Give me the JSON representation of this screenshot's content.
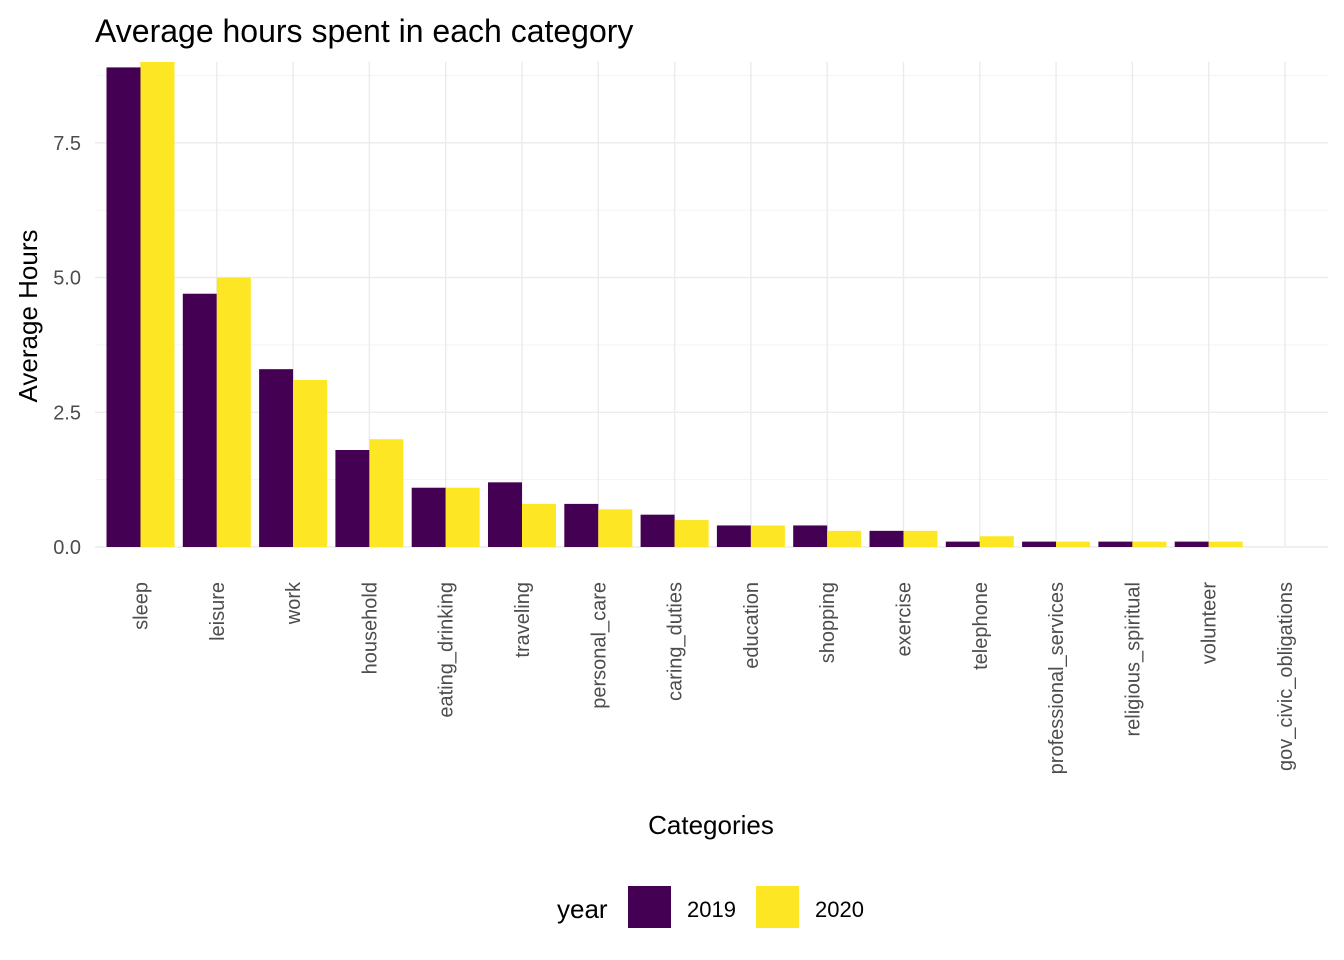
{
  "chart_data": {
    "type": "bar",
    "title": "Average hours spent in each category",
    "xlabel": "Categories",
    "ylabel": "Average Hours",
    "categories": [
      "sleep",
      "leisure",
      "work",
      "household",
      "eating_drinking",
      "traveling",
      "personal_care",
      "caring_duties",
      "education",
      "shopping",
      "exercise",
      "telephone",
      "professional_services",
      "religious_spiritual",
      "volunteer",
      "gov_civic_obligations"
    ],
    "series": [
      {
        "name": "2019",
        "color": "#440154",
        "values": [
          8.9,
          4.7,
          3.3,
          1.8,
          1.1,
          1.2,
          0.8,
          0.6,
          0.4,
          0.4,
          0.3,
          0.1,
          0.1,
          0.1,
          0.1,
          0.0
        ]
      },
      {
        "name": "2020",
        "color": "#FDE725",
        "values": [
          9.0,
          5.0,
          3.1,
          2.0,
          1.1,
          0.8,
          0.7,
          0.5,
          0.4,
          0.3,
          0.3,
          0.2,
          0.1,
          0.1,
          0.1,
          0.0
        ]
      }
    ],
    "ylim": [
      0,
      9.0
    ],
    "yticks": [
      0.0,
      2.5,
      5.0,
      7.5
    ],
    "ytick_labels": [
      "0.0",
      "2.5",
      "5.0",
      "7.5"
    ],
    "grid": true,
    "legend": {
      "title": "year",
      "position": "bottom"
    }
  }
}
